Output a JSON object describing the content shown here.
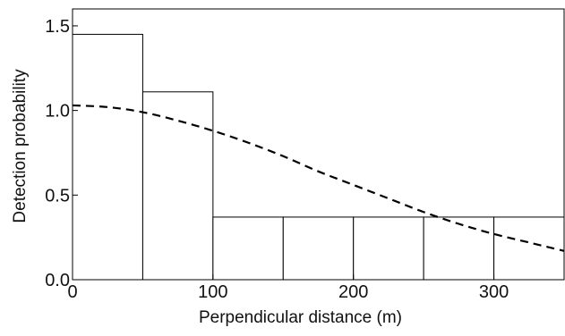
{
  "chart_data": {
    "type": "bar",
    "subtype": "histogram with fitted detection function",
    "xlabel": "Perpendicular distance (m)",
    "ylabel": "Detection probability",
    "xlim": [
      0,
      350
    ],
    "ylim": [
      0,
      1.6
    ],
    "x_ticks": [
      0,
      100,
      200,
      300
    ],
    "x_tick_labels": [
      "0",
      "100",
      "200",
      "300"
    ],
    "y_ticks": [
      0.0,
      0.5,
      1.0,
      1.5
    ],
    "y_tick_labels": [
      "0.0",
      "0.5",
      "1.0",
      "1.5"
    ],
    "bins": [
      {
        "x0": 0,
        "x1": 50,
        "value": 1.45
      },
      {
        "x0": 50,
        "x1": 100,
        "value": 1.11
      },
      {
        "x0": 100,
        "x1": 150,
        "value": 0.37
      },
      {
        "x0": 150,
        "x1": 200,
        "value": 0.37
      },
      {
        "x0": 200,
        "x1": 250,
        "value": 0.37
      },
      {
        "x0": 250,
        "x1": 300,
        "value": 0.37
      },
      {
        "x0": 300,
        "x1": 350,
        "value": 0.37
      }
    ],
    "fitted_curve": {
      "style": "dashed",
      "model": "half-normal",
      "x": [
        0,
        25,
        50,
        75,
        100,
        125,
        150,
        175,
        200,
        225,
        250,
        275,
        300,
        325,
        350
      ],
      "y": [
        1.03,
        1.02,
        0.99,
        0.94,
        0.88,
        0.81,
        0.73,
        0.64,
        0.56,
        0.48,
        0.4,
        0.33,
        0.27,
        0.22,
        0.17
      ]
    },
    "grid": false,
    "colors": {
      "bars_stroke": "#000000",
      "bars_fill": "#ffffff",
      "curve": "#000000"
    }
  }
}
